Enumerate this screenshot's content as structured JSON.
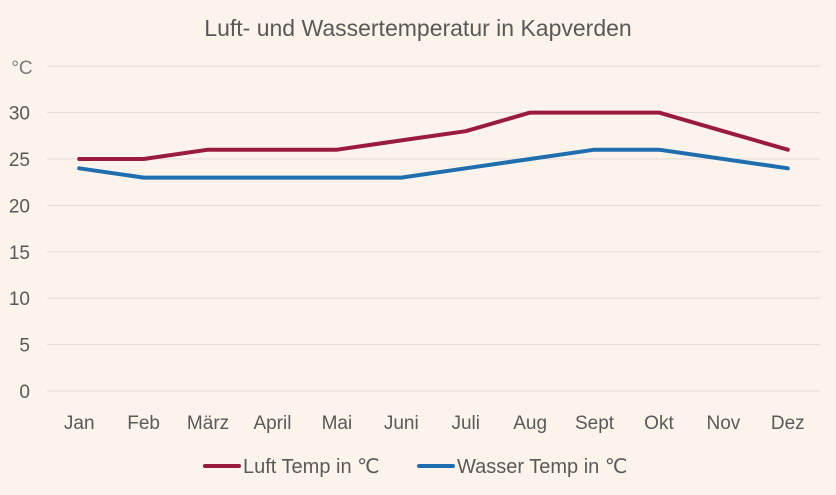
{
  "chart_data": {
    "type": "line",
    "title": "Luft- und Wassertemperatur in Kapverden",
    "ylabel": "°C",
    "xlabel": "",
    "categories": [
      "Jan",
      "Feb",
      "März",
      "April",
      "Mai",
      "Juni",
      "Juli",
      "Aug",
      "Sept",
      "Okt",
      "Nov",
      "Dez"
    ],
    "ylim": [
      0,
      35
    ],
    "yticks": [
      0,
      5,
      10,
      15,
      20,
      25,
      30
    ],
    "grid": true,
    "legend_position": "bottom",
    "series": [
      {
        "name": "Luft Temp in ℃",
        "color": "#9b1b3c",
        "values": [
          25,
          25,
          26,
          26,
          26,
          27,
          28,
          30,
          30,
          30,
          28,
          26
        ]
      },
      {
        "name": "Wasser Temp in ℃",
        "color": "#1f6fb0",
        "values": [
          24,
          23,
          23,
          23,
          23,
          23,
          24,
          25,
          26,
          26,
          25,
          24
        ]
      }
    ]
  }
}
